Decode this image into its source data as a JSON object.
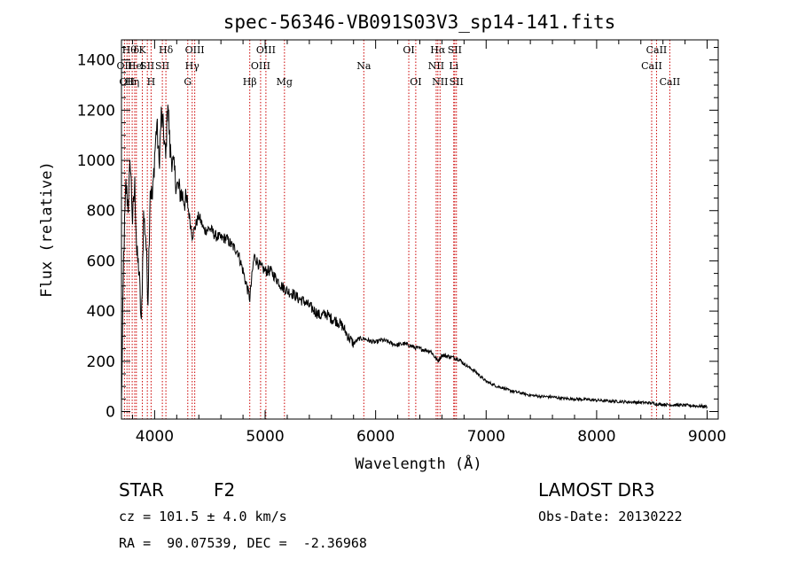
{
  "chart_data": {
    "type": "line",
    "title": "spec-56346-VB091S03V3_sp14-141.fits",
    "xlabel": "Wavelength (Å)",
    "ylabel": "Flux (relative)",
    "xlim": [
      3700,
      9100
    ],
    "ylim": [
      -30,
      1480
    ],
    "xticks": [
      4000,
      5000,
      6000,
      7000,
      8000,
      9000
    ],
    "yticks": [
      0,
      200,
      400,
      600,
      800,
      1000,
      1200,
      1400
    ],
    "series": [
      {
        "name": "flux",
        "x": [
          3700,
          3720,
          3740,
          3760,
          3780,
          3800,
          3820,
          3840,
          3860,
          3880,
          3900,
          3920,
          3940,
          3960,
          3980,
          4000,
          4020,
          4040,
          4060,
          4080,
          4100,
          4120,
          4140,
          4160,
          4180,
          4200,
          4250,
          4300,
          4340,
          4400,
          4450,
          4500,
          4550,
          4600,
          4650,
          4700,
          4750,
          4800,
          4861,
          4900,
          4950,
          5000,
          5050,
          5100,
          5150,
          5200,
          5250,
          5300,
          5350,
          5400,
          5450,
          5500,
          5550,
          5600,
          5650,
          5700,
          5750,
          5800,
          5850,
          5900,
          5950,
          6000,
          6050,
          6100,
          6150,
          6200,
          6250,
          6300,
          6350,
          6400,
          6450,
          6500,
          6563,
          6600,
          6650,
          6700,
          6750,
          6800,
          6850,
          6900,
          6950,
          7000,
          7050,
          7100,
          7150,
          7200,
          7300,
          7400,
          7500,
          7600,
          7700,
          7800,
          7900,
          8000,
          8100,
          8200,
          8300,
          8400,
          8500,
          8542,
          8600,
          8662,
          8700,
          8800,
          8900,
          9000
        ],
        "y": [
          20,
          620,
          900,
          820,
          1000,
          760,
          900,
          620,
          560,
          330,
          780,
          700,
          450,
          900,
          840,
          1020,
          1150,
          980,
          1180,
          1120,
          1000,
          1250,
          1040,
          1000,
          950,
          900,
          860,
          820,
          700,
          780,
          720,
          730,
          700,
          690,
          690,
          660,
          640,
          560,
          450,
          620,
          580,
          560,
          560,
          530,
          500,
          480,
          470,
          450,
          440,
          420,
          400,
          380,
          390,
          370,
          360,
          340,
          300,
          270,
          290,
          290,
          280,
          275,
          285,
          280,
          270,
          265,
          270,
          265,
          255,
          250,
          245,
          240,
          200,
          225,
          220,
          215,
          210,
          190,
          175,
          160,
          140,
          120,
          110,
          100,
          95,
          85,
          75,
          65,
          60,
          58,
          52,
          50,
          48,
          45,
          42,
          40,
          38,
          36,
          34,
          30,
          28,
          27,
          26,
          25,
          22,
          20
        ]
      }
    ],
    "line_labels": [
      {
        "w": 3727,
        "text": "OII",
        "row": 2
      },
      {
        "w": 3750,
        "text": "OII",
        "row": 3
      },
      {
        "w": 3770,
        "text": "Hθ",
        "row": 1
      },
      {
        "w": 3797,
        "text": "Hη",
        "row": 3
      },
      {
        "w": 3820,
        "text": "He",
        "row": 2
      },
      {
        "w": 3835,
        "text": "δ",
        "row": 1
      },
      {
        "w": 3889,
        "text": "K",
        "row": 1
      },
      {
        "w": 3889,
        "text": "I",
        "row": 2
      },
      {
        "w": 3934,
        "text": "SII",
        "row": 2
      },
      {
        "w": 3968,
        "text": "H",
        "row": 3
      },
      {
        "w": 4102,
        "text": "Hδ",
        "row": 1
      },
      {
        "w": 4070,
        "text": "SII",
        "row": 2
      },
      {
        "w": 4300,
        "text": "G",
        "row": 3
      },
      {
        "w": 4340,
        "text": "Hγ",
        "row": 2
      },
      {
        "w": 4363,
        "text": "OIII",
        "row": 1
      },
      {
        "w": 4861,
        "text": "Hβ",
        "row": 3
      },
      {
        "w": 4959,
        "text": "OIII",
        "row": 2
      },
      {
        "w": 5007,
        "text": "OIII",
        "row": 1
      },
      {
        "w": 5175,
        "text": "Mg",
        "row": 3
      },
      {
        "w": 5893,
        "text": "Na",
        "row": 2
      },
      {
        "w": 6300,
        "text": "OI",
        "row": 1
      },
      {
        "w": 6363,
        "text": "OI",
        "row": 3
      },
      {
        "w": 6548,
        "text": "NII",
        "row": 2
      },
      {
        "w": 6563,
        "text": "Hα",
        "row": 1
      },
      {
        "w": 6583,
        "text": "NII",
        "row": 3
      },
      {
        "w": 6707,
        "text": "Li",
        "row": 2
      },
      {
        "w": 6716,
        "text": "SII",
        "row": 1
      },
      {
        "w": 6731,
        "text": "SII",
        "row": 3
      },
      {
        "w": 8498,
        "text": "CaII",
        "row": 2
      },
      {
        "w": 8542,
        "text": "CaII",
        "row": 1
      },
      {
        "w": 8662,
        "text": "CaII",
        "row": 3
      }
    ],
    "line_positions": [
      3727,
      3750,
      3770,
      3797,
      3820,
      3835,
      3889,
      3934,
      3968,
      4102,
      4070,
      4300,
      4340,
      4363,
      4861,
      4959,
      5007,
      5175,
      5893,
      6300,
      6363,
      6548,
      6563,
      6583,
      6707,
      6716,
      6731,
      8498,
      8542,
      8662
    ],
    "colors": {
      "spectrum": "#000000",
      "lines": "#cc0000"
    }
  },
  "info": {
    "class": "STAR",
    "subclass": "F2",
    "survey": "LAMOST DR3",
    "cz": "cz = 101.5 ± 4.0 km/s",
    "obs_date": "Obs-Date: 20130222",
    "radec": "RA =  90.07539, DEC =  -2.36968"
  }
}
